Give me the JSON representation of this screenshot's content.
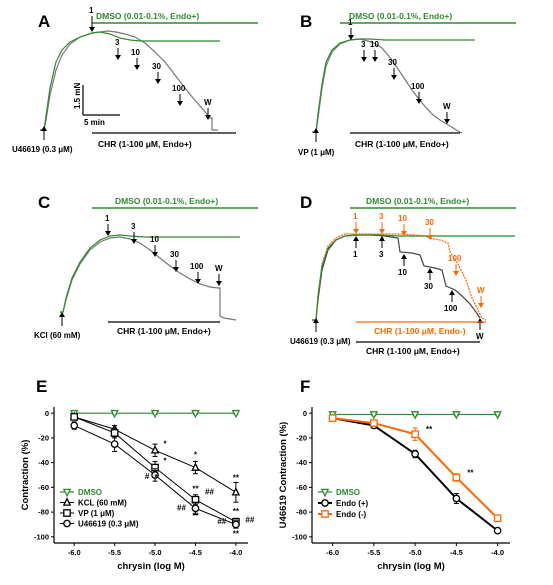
{
  "panels": {
    "A": {
      "label": "A",
      "dmso_bar": "DMSO (0.01-0.1%, Endo+)",
      "chr_bar": "CHR (1-100 μM, Endo+)",
      "agonist": "U46619 (0.3 μM)",
      "doses": [
        "1",
        "3",
        "10",
        "30",
        "100",
        "W"
      ],
      "scale_force": "1.5 mN",
      "scale_time": "5 min"
    },
    "B": {
      "label": "B",
      "dmso_bar": "DMSO (0.01-0.1%, Endo+)",
      "chr_bar": "CHR (1-100 μM, Endo+)",
      "agonist": "VP (1 μM)",
      "doses": [
        "1",
        "3",
        "10",
        "30",
        "100",
        "W"
      ]
    },
    "C": {
      "label": "C",
      "dmso_bar": "DMSO (0.01-0.1%, Endo+)",
      "chr_bar": "CHR (1-100 μM, Endo+)",
      "agonist": "KCl (60 mM)",
      "doses": [
        "1",
        "3",
        "10",
        "30",
        "100",
        "W"
      ]
    },
    "D": {
      "label": "D",
      "dmso_bar": "DMSO (0.01-0.1%, Endo+)",
      "chr_bar_minus": "CHR (1-100 μM, Endo-)",
      "chr_bar_plus": "CHR (1-100 μM, Endo+)",
      "agonist": "U46619 (0.3 μM)",
      "doses_black": [
        "1",
        "3",
        "10",
        "30",
        "100",
        "W"
      ],
      "doses_orange": [
        "1",
        "3",
        "10",
        "30",
        "100",
        "W"
      ]
    },
    "E": {
      "label": "E"
    },
    "F": {
      "label": "F"
    }
  },
  "colors": {
    "dmso": "#2e8b2e",
    "endo_minus": "#ff6600",
    "black": "#000000",
    "trace_grey": "#777777"
  },
  "chart_data": [
    {
      "panel": "E",
      "type": "line",
      "xlabel": "chrysin (log M)",
      "ylabel": "Contraction (%)",
      "x": [
        -6.0,
        -5.5,
        -5.0,
        -4.5,
        -4.0
      ],
      "x_ticks": [
        "-6.0",
        "-5.5",
        "-5.0",
        "-4.5",
        "-4.0"
      ],
      "xlim": [
        -6.25,
        -3.85
      ],
      "ylim": [
        -105,
        5
      ],
      "y_ticks": [
        "0",
        "-20",
        "-40",
        "-60",
        "-80",
        "-100"
      ],
      "legend_position": "bottom-left",
      "series": [
        {
          "name": "DMSO",
          "marker": "triangle-down",
          "values": [
            0,
            0,
            0,
            0,
            0
          ],
          "errors": [
            1,
            1,
            1,
            1,
            1
          ]
        },
        {
          "name": "KCL (60 mM)",
          "marker": "triangle-up",
          "values": [
            -3,
            -13,
            -30,
            -44,
            -64
          ],
          "errors": [
            2,
            3,
            5,
            5,
            8
          ]
        },
        {
          "name": "VP (1 μM)",
          "marker": "square",
          "values": [
            -3,
            -16,
            -44,
            -70,
            -88
          ],
          "errors": [
            2,
            4,
            5,
            4,
            3
          ]
        },
        {
          "name": "U46619 (0.3 μM)",
          "marker": "circle",
          "values": [
            -10,
            -25,
            -50,
            -77,
            -90
          ],
          "errors": [
            3,
            6,
            5,
            5,
            3
          ]
        }
      ],
      "annotations": [
        "*",
        "*",
        "#",
        "*",
        "*",
        "**",
        "##",
        "**",
        "##",
        "**",
        "**",
        "##",
        "##",
        "**"
      ]
    },
    {
      "panel": "F",
      "type": "line",
      "xlabel": "chrysin (log M)",
      "ylabel": "U46619 Contraction (%)",
      "x": [
        -6.0,
        -5.5,
        -5.0,
        -4.5,
        -4.0
      ],
      "x_ticks": [
        "-6.0",
        "-5.5",
        "-5.0",
        "-4.5",
        "-4.0"
      ],
      "xlim": [
        -6.25,
        -3.85
      ],
      "ylim": [
        -105,
        5
      ],
      "y_ticks": [
        "0",
        "-20",
        "-40",
        "-60",
        "-80",
        "-100"
      ],
      "legend_position": "bottom-left",
      "series": [
        {
          "name": "DMSO",
          "marker": "triangle-down",
          "values": [
            -1,
            -1,
            -1,
            -1,
            -1
          ],
          "errors": [
            1,
            1,
            1,
            1,
            1
          ]
        },
        {
          "name": "Endo (+)",
          "marker": "circle",
          "values": [
            -4,
            -10,
            -33,
            -69,
            -95
          ],
          "errors": [
            1,
            2,
            3,
            4,
            2
          ]
        },
        {
          "name": "Endo (-)",
          "marker": "square",
          "values": [
            -4,
            -8,
            -17,
            -52,
            -85
          ],
          "errors": [
            1,
            2,
            5,
            3,
            2
          ]
        }
      ],
      "annotations": [
        "**",
        "**"
      ]
    }
  ]
}
